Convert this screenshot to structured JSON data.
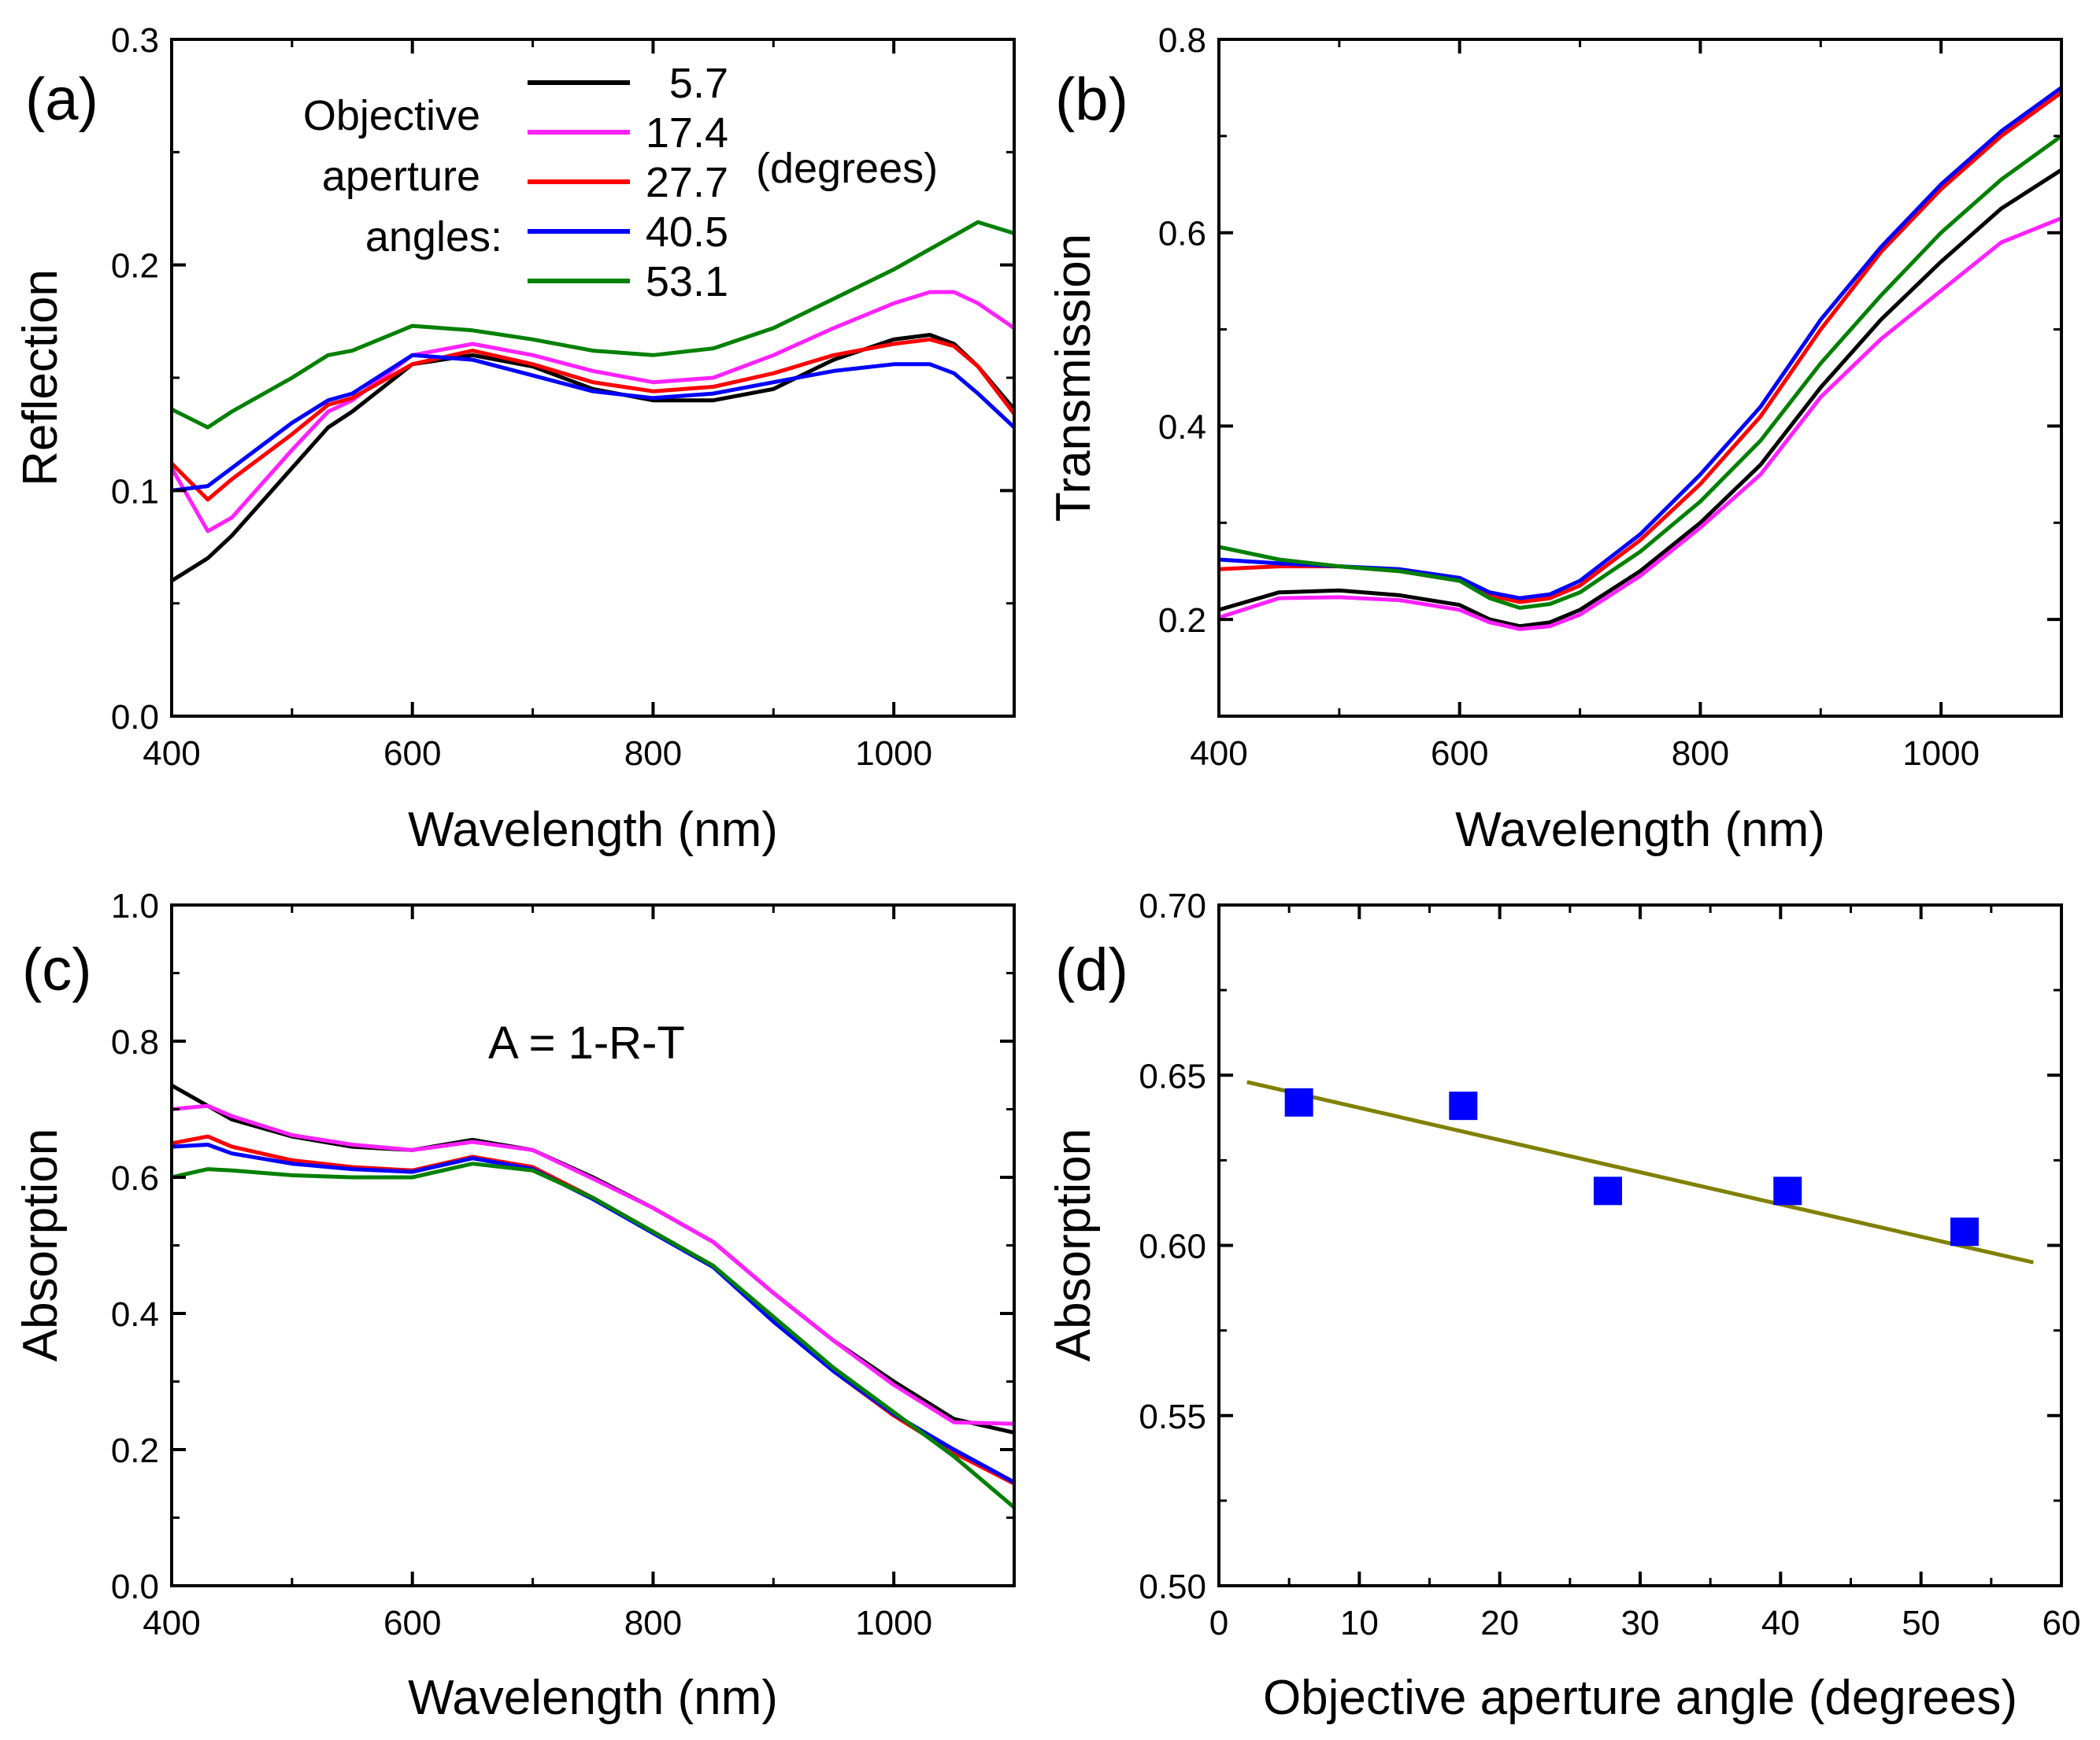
{
  "figure": {
    "panel_a": {
      "label": "(a)",
      "xlabel": "Wavelength (nm)",
      "ylabel": "Reflection"
    },
    "panel_b": {
      "label": "(b)",
      "xlabel": "Wavelength (nm)",
      "ylabel": "Transmission"
    },
    "panel_c": {
      "label": "(c)",
      "xlabel": "Wavelength (nm)",
      "ylabel": "Absorption",
      "annotation": "A = 1-R-T"
    },
    "panel_d": {
      "label": "(d)",
      "xlabel": "Objective aperture angle (degrees)",
      "ylabel": "Absorption"
    },
    "legend": {
      "title_lines": [
        "Objective",
        "aperture",
        "angles:"
      ],
      "unit": "(degrees)",
      "entries": [
        {
          "label": "5.7",
          "color": "#000000"
        },
        {
          "label": "17.4",
          "color": "#ff22ff"
        },
        {
          "label": "27.7",
          "color": "#ff0000"
        },
        {
          "label": "40.5",
          "color": "#0000ff"
        },
        {
          "label": "53.1",
          "color": "#008000"
        }
      ]
    }
  },
  "chart_data": [
    {
      "id": "a",
      "type": "line",
      "title": "(a)",
      "xlabel": "Wavelength (nm)",
      "ylabel": "Reflection",
      "xlim": [
        400,
        1100
      ],
      "ylim": [
        0,
        0.3
      ],
      "xticks": [
        400,
        600,
        800,
        1000
      ],
      "xtick_labels": [
        "400",
        "600",
        "800",
        "1000"
      ],
      "yticks": [
        0,
        0.1,
        0.2,
        0.3
      ],
      "ytick_labels": [
        "0.0",
        "0.1",
        "0.2",
        "0.3"
      ],
      "x": [
        400,
        430,
        450,
        500,
        530,
        550,
        600,
        650,
        700,
        750,
        800,
        850,
        900,
        950,
        1000,
        1030,
        1050,
        1070,
        1100
      ],
      "series": [
        {
          "name": "5.7",
          "color": "#000000",
          "values": [
            0.06,
            0.07,
            0.08,
            0.11,
            0.128,
            0.135,
            0.156,
            0.16,
            0.155,
            0.145,
            0.14,
            0.14,
            0.145,
            0.158,
            0.167,
            0.169,
            0.165,
            0.155,
            0.136
          ]
        },
        {
          "name": "17.4",
          "color": "#ff22ff",
          "values": [
            0.11,
            0.082,
            0.088,
            0.118,
            0.135,
            0.14,
            0.16,
            0.165,
            0.16,
            0.153,
            0.148,
            0.15,
            0.16,
            0.172,
            0.183,
            0.188,
            0.188,
            0.183,
            0.172
          ]
        },
        {
          "name": "27.7",
          "color": "#ff0000",
          "values": [
            0.112,
            0.096,
            0.105,
            0.125,
            0.138,
            0.141,
            0.156,
            0.162,
            0.156,
            0.148,
            0.144,
            0.146,
            0.152,
            0.16,
            0.165,
            0.167,
            0.164,
            0.155,
            0.134
          ]
        },
        {
          "name": "40.5",
          "color": "#0000ff",
          "values": [
            0.1,
            0.102,
            0.11,
            0.13,
            0.14,
            0.143,
            0.16,
            0.158,
            0.151,
            0.144,
            0.141,
            0.143,
            0.148,
            0.153,
            0.156,
            0.156,
            0.152,
            0.143,
            0.128
          ]
        },
        {
          "name": "53.1",
          "color": "#008000",
          "values": [
            0.136,
            0.128,
            0.135,
            0.15,
            0.16,
            0.162,
            0.173,
            0.171,
            0.167,
            0.162,
            0.16,
            0.163,
            0.172,
            0.185,
            0.198,
            0.207,
            0.213,
            0.219,
            0.214
          ]
        }
      ]
    },
    {
      "id": "b",
      "type": "line",
      "title": "(b)",
      "xlabel": "Wavelength (nm)",
      "ylabel": "Transmission",
      "xlim": [
        400,
        1100
      ],
      "ylim": [
        0.1,
        0.8
      ],
      "xticks": [
        400,
        600,
        800,
        1000
      ],
      "xtick_labels": [
        "400",
        "600",
        "800",
        "1000"
      ],
      "yticks": [
        0.2,
        0.4,
        0.6,
        0.8
      ],
      "ytick_labels": [
        "0.2",
        "0.4",
        "0.6",
        "0.8"
      ],
      "x": [
        400,
        450,
        500,
        550,
        600,
        625,
        650,
        675,
        700,
        750,
        800,
        850,
        900,
        950,
        1000,
        1050,
        1100
      ],
      "series": [
        {
          "name": "5.7",
          "color": "#000000",
          "values": [
            0.21,
            0.228,
            0.23,
            0.225,
            0.215,
            0.2,
            0.193,
            0.197,
            0.21,
            0.25,
            0.3,
            0.36,
            0.44,
            0.51,
            0.57,
            0.625,
            0.665
          ]
        },
        {
          "name": "17.4",
          "color": "#ff22ff",
          "values": [
            0.202,
            0.222,
            0.223,
            0.22,
            0.21,
            0.197,
            0.19,
            0.193,
            0.205,
            0.245,
            0.295,
            0.35,
            0.43,
            0.49,
            0.54,
            0.59,
            0.615
          ]
        },
        {
          "name": "27.7",
          "color": "#ff0000",
          "values": [
            0.252,
            0.255,
            0.255,
            0.25,
            0.24,
            0.225,
            0.218,
            0.222,
            0.235,
            0.282,
            0.34,
            0.41,
            0.5,
            0.58,
            0.645,
            0.7,
            0.745
          ]
        },
        {
          "name": "40.5",
          "color": "#0000ff",
          "values": [
            0.262,
            0.258,
            0.255,
            0.252,
            0.243,
            0.228,
            0.222,
            0.226,
            0.24,
            0.288,
            0.35,
            0.42,
            0.51,
            0.585,
            0.65,
            0.705,
            0.75
          ]
        },
        {
          "name": "53.1",
          "color": "#008000",
          "values": [
            0.275,
            0.262,
            0.255,
            0.25,
            0.24,
            0.222,
            0.212,
            0.216,
            0.228,
            0.27,
            0.322,
            0.385,
            0.465,
            0.535,
            0.6,
            0.655,
            0.7
          ]
        }
      ]
    },
    {
      "id": "c",
      "type": "line",
      "title": "(c)",
      "xlabel": "Wavelength (nm)",
      "ylabel": "Absorption",
      "xlim": [
        400,
        1100
      ],
      "ylim": [
        0,
        1.0
      ],
      "xticks": [
        400,
        600,
        800,
        1000
      ],
      "xtick_labels": [
        "400",
        "600",
        "800",
        "1000"
      ],
      "yticks": [
        0,
        0.2,
        0.4,
        0.6,
        0.8,
        1.0
      ],
      "ytick_labels": [
        "0.0",
        "0.2",
        "0.4",
        "0.6",
        "0.8",
        "1.0"
      ],
      "x": [
        400,
        430,
        450,
        500,
        550,
        600,
        650,
        700,
        750,
        800,
        850,
        900,
        950,
        1000,
        1050,
        1100
      ],
      "series": [
        {
          "name": "5.7",
          "color": "#000000",
          "values": [
            0.735,
            0.705,
            0.685,
            0.66,
            0.645,
            0.64,
            0.655,
            0.64,
            0.6,
            0.555,
            0.505,
            0.43,
            0.36,
            0.3,
            0.245,
            0.225
          ]
        },
        {
          "name": "17.4",
          "color": "#ff22ff",
          "values": [
            0.7,
            0.705,
            0.69,
            0.662,
            0.648,
            0.64,
            0.652,
            0.64,
            0.598,
            0.555,
            0.505,
            0.43,
            0.36,
            0.295,
            0.24,
            0.238
          ]
        },
        {
          "name": "27.7",
          "color": "#ff0000",
          "values": [
            0.65,
            0.66,
            0.645,
            0.625,
            0.615,
            0.61,
            0.63,
            0.615,
            0.57,
            0.52,
            0.47,
            0.39,
            0.315,
            0.25,
            0.195,
            0.15
          ]
        },
        {
          "name": "40.5",
          "color": "#0000ff",
          "values": [
            0.645,
            0.648,
            0.635,
            0.62,
            0.612,
            0.608,
            0.628,
            0.612,
            0.568,
            0.518,
            0.468,
            0.388,
            0.315,
            0.252,
            0.2,
            0.152
          ]
        },
        {
          "name": "53.1",
          "color": "#008000",
          "values": [
            0.6,
            0.612,
            0.61,
            0.603,
            0.6,
            0.6,
            0.62,
            0.61,
            0.57,
            0.52,
            0.47,
            0.395,
            0.32,
            0.255,
            0.19,
            0.115
          ]
        }
      ]
    },
    {
      "id": "d",
      "type": "scatter",
      "title": "(d)",
      "xlabel": "Objective aperture angle (degrees)",
      "ylabel": "Absorption",
      "xlim": [
        0,
        60
      ],
      "ylim": [
        0.5,
        0.7
      ],
      "xticks": [
        0,
        10,
        20,
        30,
        40,
        50,
        60
      ],
      "xtick_labels": [
        "0",
        "10",
        "20",
        "30",
        "40",
        "50",
        "60"
      ],
      "yticks": [
        0.5,
        0.55,
        0.6,
        0.65,
        0.7
      ],
      "ytick_labels": [
        "0.50",
        "0.55",
        "0.60",
        "0.65",
        "0.70"
      ],
      "points": {
        "x": [
          5.7,
          17.4,
          27.7,
          40.5,
          53.1
        ],
        "y": [
          0.642,
          0.641,
          0.616,
          0.616,
          0.604
        ],
        "color": "#0000ff",
        "marker": "square"
      },
      "fit_line": {
        "x": [
          2,
          58
        ],
        "y": [
          0.648,
          0.595
        ],
        "color": "#808000"
      }
    }
  ]
}
